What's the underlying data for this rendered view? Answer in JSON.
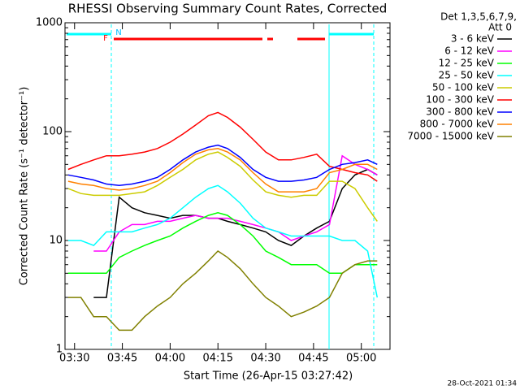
{
  "chart_data": {
    "type": "line",
    "title": "RHESSI Observing Summary Count Rates, Corrected",
    "x_label": "Start Time (26-Apr-15 03:27:42)",
    "y_label": "Corrected Count Rate (s⁻¹ detector⁻¹)",
    "legend_title": [
      "Det 1,3,5,6,7,9,",
      "Att 0"
    ],
    "footer": "28-Oct-2021 01:34",
    "flag_labels": [
      "F",
      "N"
    ],
    "log_y": true,
    "ylim": [
      1,
      1000
    ],
    "yticks": [
      1,
      10,
      100,
      1000
    ],
    "xlim": [
      "03:27",
      "05:09"
    ],
    "xticks": [
      "03:30",
      "03:45",
      "04:00",
      "04:15",
      "04:30",
      "04:45",
      "05:00"
    ],
    "x": [
      "03:28",
      "03:32",
      "03:36",
      "03:40",
      "03:44",
      "03:48",
      "03:52",
      "03:56",
      "04:00",
      "04:04",
      "04:08",
      "04:12",
      "04:15",
      "04:18",
      "04:22",
      "04:26",
      "04:30",
      "04:34",
      "04:38",
      "04:42",
      "04:46",
      "04:50",
      "04:54",
      "04:58",
      "05:02",
      "05:05"
    ],
    "series": [
      {
        "name": "3 - 6 keV",
        "color": "#000000",
        "values": [
          null,
          null,
          3,
          3,
          25,
          20,
          18,
          17,
          16,
          17,
          17,
          16,
          16,
          15,
          14,
          13,
          12,
          10,
          9,
          11,
          13,
          15,
          30,
          40,
          45,
          40
        ]
      },
      {
        "name": "6 - 12 keV",
        "color": "#ff00ff",
        "values": [
          null,
          null,
          8,
          8,
          12,
          14,
          14,
          15,
          15,
          16,
          17,
          16,
          16,
          16,
          15,
          14,
          13,
          12,
          10,
          11,
          12,
          14,
          60,
          50,
          45,
          40
        ]
      },
      {
        "name": "12 - 25 keV",
        "color": "#00ff00",
        "values": [
          5,
          5,
          5,
          5,
          7,
          8,
          9,
          10,
          11,
          13,
          15,
          17,
          18,
          17,
          14,
          11,
          8,
          7,
          6,
          6,
          6,
          5,
          5,
          6,
          6,
          6
        ]
      },
      {
        "name": "25 - 50 keV",
        "color": "#00ffff",
        "values": [
          10,
          10,
          9,
          12,
          12,
          12,
          13,
          14,
          16,
          20,
          25,
          30,
          32,
          28,
          22,
          16,
          13,
          12,
          11,
          11,
          11,
          11,
          10,
          10,
          8,
          3
        ]
      },
      {
        "name": "50 - 100 keV",
        "color": "#cccc00",
        "values": [
          30,
          27,
          26,
          26,
          26,
          27,
          28,
          32,
          38,
          45,
          55,
          62,
          65,
          58,
          48,
          36,
          28,
          26,
          25,
          26,
          26,
          35,
          35,
          30,
          20,
          15
        ]
      },
      {
        "name": "100 - 300 keV",
        "color": "#ff0000",
        "values": [
          45,
          50,
          55,
          60,
          60,
          62,
          65,
          70,
          80,
          95,
          115,
          140,
          150,
          135,
          110,
          85,
          65,
          55,
          55,
          58,
          62,
          48,
          45,
          42,
          40,
          35
        ]
      },
      {
        "name": "300 - 800 keV",
        "color": "#0000ff",
        "values": [
          40,
          38,
          36,
          33,
          32,
          33,
          35,
          38,
          45,
          55,
          65,
          72,
          75,
          70,
          58,
          45,
          38,
          35,
          35,
          36,
          38,
          45,
          50,
          52,
          55,
          50
        ]
      },
      {
        "name": "800 - 7000 keV",
        "color": "#ff8000",
        "values": [
          35,
          33,
          32,
          30,
          29,
          30,
          32,
          35,
          42,
          52,
          62,
          68,
          70,
          65,
          55,
          42,
          33,
          28,
          28,
          28,
          30,
          42,
          45,
          50,
          50,
          45
        ]
      },
      {
        "name": "7000 - 15000 keV",
        "color": "#808000",
        "values": [
          3,
          3,
          2,
          2,
          1.5,
          1.5,
          2,
          2.5,
          3,
          4,
          5,
          6.5,
          8,
          7,
          5.5,
          4,
          3,
          2.5,
          2,
          2.2,
          2.5,
          3,
          5,
          6,
          6.5,
          6.5
        ]
      }
    ]
  }
}
